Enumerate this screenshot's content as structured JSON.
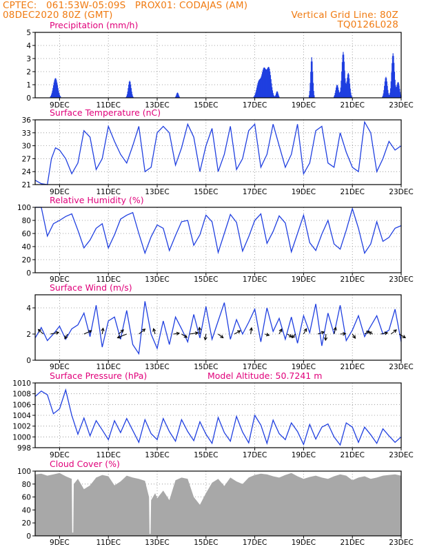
{
  "header": {
    "line1": "CPTEC:   061:53W-05:09S   PROX01: CODAJAS (AM)",
    "line2": "08DEC2020 80Z (GMT)",
    "right1": "Vertical Grid Line: 80Z",
    "right2": "TQ0126L028"
  },
  "colors": {
    "header": "#f07a10",
    "title": "#e0007a",
    "series": "#1f3fe0",
    "cloud": "#a8a8a8",
    "arrow": "#000000"
  },
  "chart_data": [
    {
      "type": "bar",
      "title": "Precipitation (mm/h)",
      "ylim": [
        0,
        5
      ],
      "yticks": [
        0,
        1,
        2,
        3,
        4,
        5
      ],
      "xlim": [
        0,
        360
      ],
      "xticks": [
        {
          "x": 24,
          "label": "9DEC"
        },
        {
          "x": 72,
          "label": "11DEC"
        },
        {
          "x": 120,
          "label": "13DEC"
        },
        {
          "x": 168,
          "label": "15DEC"
        },
        {
          "x": 216,
          "label": "17DEC"
        },
        {
          "x": 264,
          "label": "19DEC"
        },
        {
          "x": 312,
          "label": "21DEC"
        },
        {
          "x": 360,
          "label": "23DEC"
        }
      ],
      "peaks": [
        {
          "c": 20,
          "w": 3,
          "h": 1.5
        },
        {
          "c": 93,
          "w": 2,
          "h": 1.3
        },
        {
          "c": 140,
          "w": 1.5,
          "h": 0.4
        },
        {
          "c": 220,
          "w": 3,
          "h": 1.2
        },
        {
          "c": 225,
          "w": 3,
          "h": 2.1
        },
        {
          "c": 230,
          "w": 3,
          "h": 2.2
        },
        {
          "c": 238,
          "w": 1.5,
          "h": 0.5
        },
        {
          "c": 272,
          "w": 1.5,
          "h": 3.1
        },
        {
          "c": 297,
          "w": 2,
          "h": 1.0
        },
        {
          "c": 303,
          "w": 2,
          "h": 3.5
        },
        {
          "c": 308,
          "w": 2,
          "h": 1.9
        },
        {
          "c": 345,
          "w": 2,
          "h": 1.6
        },
        {
          "c": 352,
          "w": 2,
          "h": 3.4
        },
        {
          "c": 357,
          "w": 2,
          "h": 1.2
        }
      ]
    },
    {
      "type": "line",
      "title": "Surface Temperature (nC)",
      "ylim": [
        21,
        36
      ],
      "yticks": [
        21,
        24,
        27,
        30,
        33,
        36
      ],
      "xlim": [
        0,
        360
      ],
      "xticks": [
        {
          "x": 24,
          "label": "9DEC"
        },
        {
          "x": 72,
          "label": "11DEC"
        },
        {
          "x": 120,
          "label": "13DEC"
        },
        {
          "x": 168,
          "label": "15DEC"
        },
        {
          "x": 216,
          "label": "17DEC"
        },
        {
          "x": 264,
          "label": "19DEC"
        },
        {
          "x": 312,
          "label": "21DEC"
        },
        {
          "x": 360,
          "label": "23DEC"
        }
      ],
      "x": [
        0,
        6,
        12,
        16,
        20,
        24,
        30,
        36,
        42,
        48,
        54,
        60,
        66,
        72,
        78,
        84,
        90,
        96,
        102,
        108,
        114,
        120,
        126,
        132,
        138,
        144,
        150,
        156,
        162,
        168,
        174,
        180,
        186,
        192,
        198,
        204,
        210,
        216,
        222,
        228,
        234,
        240,
        246,
        252,
        258,
        264,
        270,
        276,
        282,
        288,
        294,
        300,
        306,
        312,
        318,
        324,
        330,
        336,
        342,
        348,
        354,
        360
      ],
      "y": [
        22,
        21.2,
        21,
        27,
        29.5,
        29,
        27,
        23.5,
        26,
        33.5,
        32,
        24.5,
        27,
        34.5,
        31,
        28,
        26,
        30,
        34.5,
        24,
        25,
        33,
        34.5,
        33,
        25.5,
        29.5,
        35,
        32,
        24,
        30,
        34,
        24,
        28,
        34.5,
        24.5,
        27,
        33.5,
        35,
        25,
        28,
        35,
        30,
        25,
        28,
        35,
        23.5,
        26,
        33.5,
        34.5,
        26,
        25,
        33,
        28.5,
        25,
        24,
        35.5,
        33,
        24,
        27,
        31,
        29,
        30
      ]
    },
    {
      "type": "line",
      "title": "Relative Humidity (%)",
      "ylim": [
        0,
        100
      ],
      "yticks": [
        0,
        20,
        40,
        60,
        80,
        100
      ],
      "xlim": [
        0,
        360
      ],
      "xticks": [
        {
          "x": 24,
          "label": "9DEC"
        },
        {
          "x": 72,
          "label": "11DEC"
        },
        {
          "x": 120,
          "label": "13DEC"
        },
        {
          "x": 168,
          "label": "15DEC"
        },
        {
          "x": 216,
          "label": "17DEC"
        },
        {
          "x": 264,
          "label": "19DEC"
        },
        {
          "x": 312,
          "label": "21DEC"
        },
        {
          "x": 360,
          "label": "23DEC"
        }
      ],
      "x": [
        0,
        6,
        12,
        18,
        24,
        30,
        36,
        42,
        48,
        54,
        60,
        66,
        72,
        78,
        84,
        90,
        96,
        102,
        108,
        114,
        120,
        126,
        132,
        138,
        144,
        150,
        156,
        162,
        168,
        174,
        180,
        186,
        192,
        198,
        204,
        210,
        216,
        222,
        228,
        234,
        240,
        246,
        252,
        258,
        264,
        270,
        276,
        282,
        288,
        294,
        300,
        306,
        312,
        318,
        324,
        330,
        336,
        342,
        348,
        354,
        360
      ],
      "y": [
        100,
        100,
        56,
        75,
        80,
        86,
        90,
        65,
        38,
        50,
        68,
        75,
        38,
        58,
        82,
        88,
        92,
        60,
        30,
        55,
        73,
        68,
        34,
        57,
        78,
        80,
        42,
        58,
        88,
        78,
        31,
        60,
        89,
        77,
        33,
        55,
        80,
        90,
        45,
        63,
        87,
        76,
        32,
        60,
        88,
        46,
        34,
        59,
        80,
        44,
        36,
        65,
        98,
        68,
        30,
        44,
        78,
        48,
        54,
        68,
        72
      ]
    },
    {
      "type": "line",
      "title": "Surface Wind (m/s)",
      "ylim": [
        0,
        5
      ],
      "yticks": [
        0,
        2,
        4
      ],
      "xlim": [
        0,
        360
      ],
      "xticks": [
        {
          "x": 24,
          "label": "9DEC"
        },
        {
          "x": 72,
          "label": "11DEC"
        },
        {
          "x": 120,
          "label": "13DEC"
        },
        {
          "x": 168,
          "label": "15DEC"
        },
        {
          "x": 216,
          "label": "17DEC"
        },
        {
          "x": 264,
          "label": "19DEC"
        },
        {
          "x": 312,
          "label": "21DEC"
        },
        {
          "x": 360,
          "label": "23DEC"
        }
      ],
      "x": [
        0,
        6,
        12,
        18,
        24,
        30,
        36,
        42,
        48,
        54,
        60,
        66,
        72,
        78,
        84,
        90,
        96,
        102,
        108,
        114,
        120,
        126,
        132,
        138,
        144,
        150,
        156,
        162,
        168,
        174,
        180,
        186,
        192,
        198,
        204,
        210,
        216,
        222,
        228,
        234,
        240,
        246,
        252,
        258,
        264,
        270,
        276,
        282,
        288,
        294,
        300,
        306,
        312,
        318,
        324,
        330,
        336,
        342,
        348,
        354,
        360
      ],
      "y": [
        1.7,
        2.5,
        1.5,
        2.0,
        2.6,
        1.6,
        2.4,
        2.7,
        3.6,
        1.8,
        4.2,
        1.0,
        3.0,
        3.3,
        1.6,
        3.8,
        1.2,
        0.5,
        4.5,
        2.0,
        0.9,
        3.0,
        1.2,
        3.3,
        2.4,
        1.4,
        3.5,
        1.7,
        4.1,
        1.6,
        3.0,
        4.4,
        1.6,
        3.1,
        2.0,
        2.9,
        3.9,
        1.4,
        4.0,
        2.2,
        3.2,
        1.6,
        3.3,
        1.3,
        3.4,
        2.1,
        4.3,
        1.1,
        3.6,
        2.0,
        4.2,
        1.5,
        2.3,
        3.4,
        1.8,
        2.6,
        3.4,
        2.0,
        2.3,
        3.9,
        1.4
      ],
      "arrows": [
        {
          "x": 8,
          "u": -1.2,
          "v": 1.1
        },
        {
          "x": 15,
          "u": 2.0,
          "v": 0.4
        },
        {
          "x": 32,
          "u": -0.7,
          "v": -1.1
        },
        {
          "x": 48,
          "u": 1.8,
          "v": 0.8
        },
        {
          "x": 66,
          "u": 0.2,
          "v": 1.4
        },
        {
          "x": 82,
          "u": 1.2,
          "v": 1.0
        },
        {
          "x": 90,
          "u": -2.2,
          "v": -0.9
        },
        {
          "x": 102,
          "u": 1.5,
          "v": 1.2
        },
        {
          "x": 118,
          "u": -0.4,
          "v": 1.3
        },
        {
          "x": 136,
          "u": 1.4,
          "v": 0.2
        },
        {
          "x": 144,
          "u": 1.3,
          "v": -0.8
        },
        {
          "x": 152,
          "u": 2.0,
          "v": 0.3
        },
        {
          "x": 162,
          "u": -0.1,
          "v": 1.6
        },
        {
          "x": 168,
          "u": -0.2,
          "v": -1.4
        },
        {
          "x": 180,
          "u": 1.2,
          "v": -0.9
        },
        {
          "x": 196,
          "u": 1.4,
          "v": 0.8
        },
        {
          "x": 212,
          "u": 0.2,
          "v": 1.5
        },
        {
          "x": 226,
          "u": 1.0,
          "v": -0.3
        },
        {
          "x": 240,
          "u": 0.6,
          "v": 1.2
        },
        {
          "x": 248,
          "u": 1.1,
          "v": -0.7
        },
        {
          "x": 256,
          "u": -0.8,
          "v": -0.9
        },
        {
          "x": 264,
          "u": 0.7,
          "v": 1.3
        },
        {
          "x": 278,
          "u": 1.5,
          "v": 0.5
        },
        {
          "x": 286,
          "u": -0.1,
          "v": -1.5
        },
        {
          "x": 294,
          "u": 0.4,
          "v": 1.6
        },
        {
          "x": 300,
          "u": 1.3,
          "v": 0.1
        },
        {
          "x": 312,
          "u": 0.7,
          "v": -1.0
        },
        {
          "x": 324,
          "u": 1.1,
          "v": 0.7
        },
        {
          "x": 332,
          "u": -0.9,
          "v": 0.5
        },
        {
          "x": 340,
          "u": 1.6,
          "v": 0.3
        },
        {
          "x": 350,
          "u": 1.3,
          "v": 1.0
        },
        {
          "x": 358,
          "u": 1.5,
          "v": -0.9
        }
      ]
    },
    {
      "type": "line",
      "title": "Surface Pressure (hPa)",
      "annotation": "Model Altitude: 50.7241 m",
      "ylim": [
        998,
        1010
      ],
      "yticks": [
        998,
        1000,
        1002,
        1004,
        1006,
        1008,
        1010
      ],
      "xlim": [
        0,
        360
      ],
      "xticks": [
        {
          "x": 24,
          "label": "9DEC"
        },
        {
          "x": 72,
          "label": "11DEC"
        },
        {
          "x": 120,
          "label": "13DEC"
        },
        {
          "x": 168,
          "label": "15DEC"
        },
        {
          "x": 216,
          "label": "17DEC"
        },
        {
          "x": 264,
          "label": "19DEC"
        },
        {
          "x": 312,
          "label": "21DEC"
        },
        {
          "x": 360,
          "label": "23DEC"
        }
      ],
      "x": [
        0,
        6,
        12,
        18,
        24,
        30,
        36,
        42,
        48,
        54,
        60,
        66,
        72,
        78,
        84,
        90,
        96,
        102,
        108,
        114,
        120,
        126,
        132,
        138,
        144,
        150,
        156,
        162,
        168,
        174,
        180,
        186,
        192,
        198,
        204,
        210,
        216,
        222,
        228,
        234,
        240,
        246,
        252,
        258,
        264,
        270,
        276,
        282,
        288,
        294,
        300,
        306,
        312,
        318,
        324,
        330,
        336,
        342,
        348,
        354,
        360
      ],
      "y": [
        1007.5,
        1008.5,
        1007.8,
        1004.3,
        1005.2,
        1008.7,
        1004,
        1000.5,
        1003.5,
        1000.2,
        1003,
        1001.3,
        999.5,
        1003,
        1000.8,
        1003.4,
        1001.2,
        999,
        1003.2,
        1000.6,
        999.5,
        1003.4,
        1001,
        999.2,
        1003.2,
        1001,
        999.3,
        1002.8,
        1000.5,
        998.8,
        1003.6,
        1000.8,
        999.2,
        1003.8,
        1000.9,
        998.9,
        1004,
        1002.2,
        998.8,
        1003.1,
        1000.6,
        999.5,
        1002.6,
        1001,
        998.6,
        1002.3,
        999.6,
        1001.8,
        1002.4,
        1000,
        998.5,
        1002.6,
        1001.8,
        999,
        1001.8,
        1000.4,
        998.8,
        1001.5,
        1000.2,
        999,
        1000
      ]
    },
    {
      "type": "area",
      "title": "Cloud Cover (%)",
      "ylim": [
        0,
        100
      ],
      "yticks": [
        0,
        20,
        40,
        60,
        80,
        100
      ],
      "xlim": [
        0,
        360
      ],
      "xticks": [
        {
          "x": 24,
          "label": "9DEC"
        },
        {
          "x": 72,
          "label": "11DEC"
        },
        {
          "x": 120,
          "label": "13DEC"
        },
        {
          "x": 168,
          "label": "15DEC"
        },
        {
          "x": 216,
          "label": "17DEC"
        },
        {
          "x": 264,
          "label": "19DEC"
        },
        {
          "x": 312,
          "label": "21DEC"
        },
        {
          "x": 360,
          "label": "23DEC"
        }
      ],
      "x": [
        0,
        6,
        12,
        18,
        24,
        30,
        36,
        36.5,
        37.5,
        38,
        42,
        48,
        54,
        60,
        66,
        72,
        78,
        84,
        90,
        96,
        102,
        108,
        112,
        112.5,
        113.5,
        114,
        118,
        120,
        126,
        132,
        138,
        144,
        150,
        156,
        162,
        168,
        174,
        180,
        186,
        192,
        198,
        204,
        210,
        216,
        222,
        228,
        234,
        240,
        246,
        252,
        258,
        264,
        270,
        276,
        282,
        288,
        294,
        300,
        306,
        312,
        318,
        324,
        330,
        336,
        342,
        348,
        354,
        360
      ],
      "y": [
        95,
        96,
        93,
        95,
        97,
        92,
        88,
        5,
        5,
        80,
        88,
        72,
        78,
        90,
        94,
        92,
        78,
        84,
        93,
        90,
        88,
        85,
        60,
        3,
        3,
        55,
        66,
        58,
        70,
        55,
        86,
        90,
        88,
        60,
        48,
        66,
        82,
        88,
        77,
        90,
        84,
        80,
        90,
        94,
        96,
        95,
        92,
        90,
        94,
        97,
        92,
        88,
        91,
        93,
        90,
        88,
        92,
        95,
        93,
        86,
        90,
        92,
        88,
        90,
        93,
        94,
        95,
        93
      ]
    }
  ]
}
